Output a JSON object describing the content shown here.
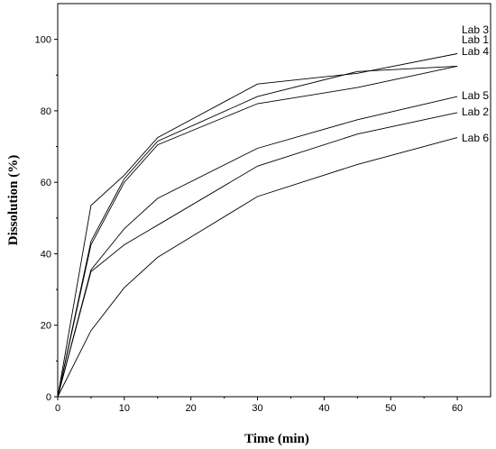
{
  "chart_data": {
    "type": "line",
    "title": "",
    "xlabel": "Time (min)",
    "ylabel": "Dissolution (%)",
    "xlim": [
      0,
      65
    ],
    "ylim": [
      0,
      110
    ],
    "xticks": [
      0,
      10,
      20,
      30,
      40,
      50,
      60
    ],
    "yticks": [
      0,
      20,
      40,
      60,
      80,
      100
    ],
    "grid": false,
    "legend": "inline-right",
    "x": [
      0,
      5,
      10,
      15,
      30,
      45,
      60
    ],
    "series": [
      {
        "name": "Lab 3",
        "values": [
          0,
          53.5,
          62,
          72.5,
          87.5,
          90.5,
          96
        ]
      },
      {
        "name": "Lab 1",
        "values": [
          0,
          43.5,
          61,
          71.5,
          84,
          91,
          92.5
        ]
      },
      {
        "name": "Lab 4",
        "values": [
          0,
          42.5,
          60,
          70.5,
          82,
          86.5,
          92.5
        ]
      },
      {
        "name": "Lab 5",
        "values": [
          0,
          35.5,
          47,
          55.5,
          69.5,
          77.5,
          84
        ]
      },
      {
        "name": "Lab 2",
        "values": [
          0,
          35,
          42.5,
          48,
          64.5,
          73.5,
          79.5
        ]
      },
      {
        "name": "Lab 6",
        "values": [
          0,
          18.5,
          30.5,
          39,
          56,
          65,
          72.5
        ]
      }
    ]
  }
}
